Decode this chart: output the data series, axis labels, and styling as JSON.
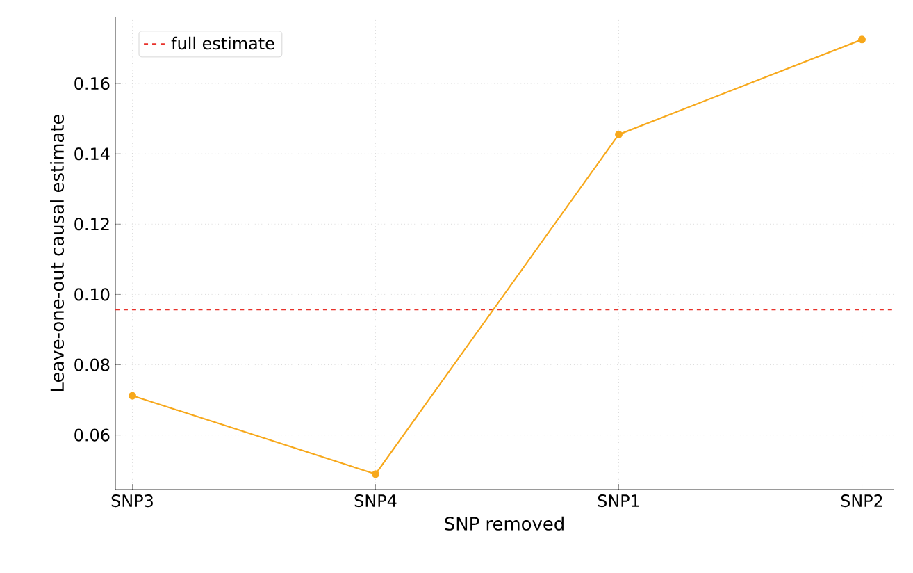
{
  "chart_data": {
    "type": "line",
    "xlabel": "SNP removed",
    "ylabel": "Leave-one-out causal estimate",
    "categories": [
      "SNP3",
      "SNP4",
      "SNP1",
      "SNP2"
    ],
    "series": [
      {
        "color": "#f7a81b",
        "values": [
          0.0712,
          0.0489,
          0.1455,
          0.1725
        ]
      }
    ],
    "ylim": [
      0.0445,
      0.179
    ],
    "yticks": [
      0.06,
      0.08,
      {
        "value": 0.1,
        "label": "0.10"
      },
      0.12,
      0.14,
      0.16
    ],
    "ref_lines": [
      {
        "axis": "y",
        "value": 0.0957,
        "label": "full estimate",
        "color": "#e8312a",
        "line_style": "dashed"
      }
    ],
    "grid": true,
    "legend": "top left",
    "marker": "circle",
    "line_style": "solid"
  }
}
